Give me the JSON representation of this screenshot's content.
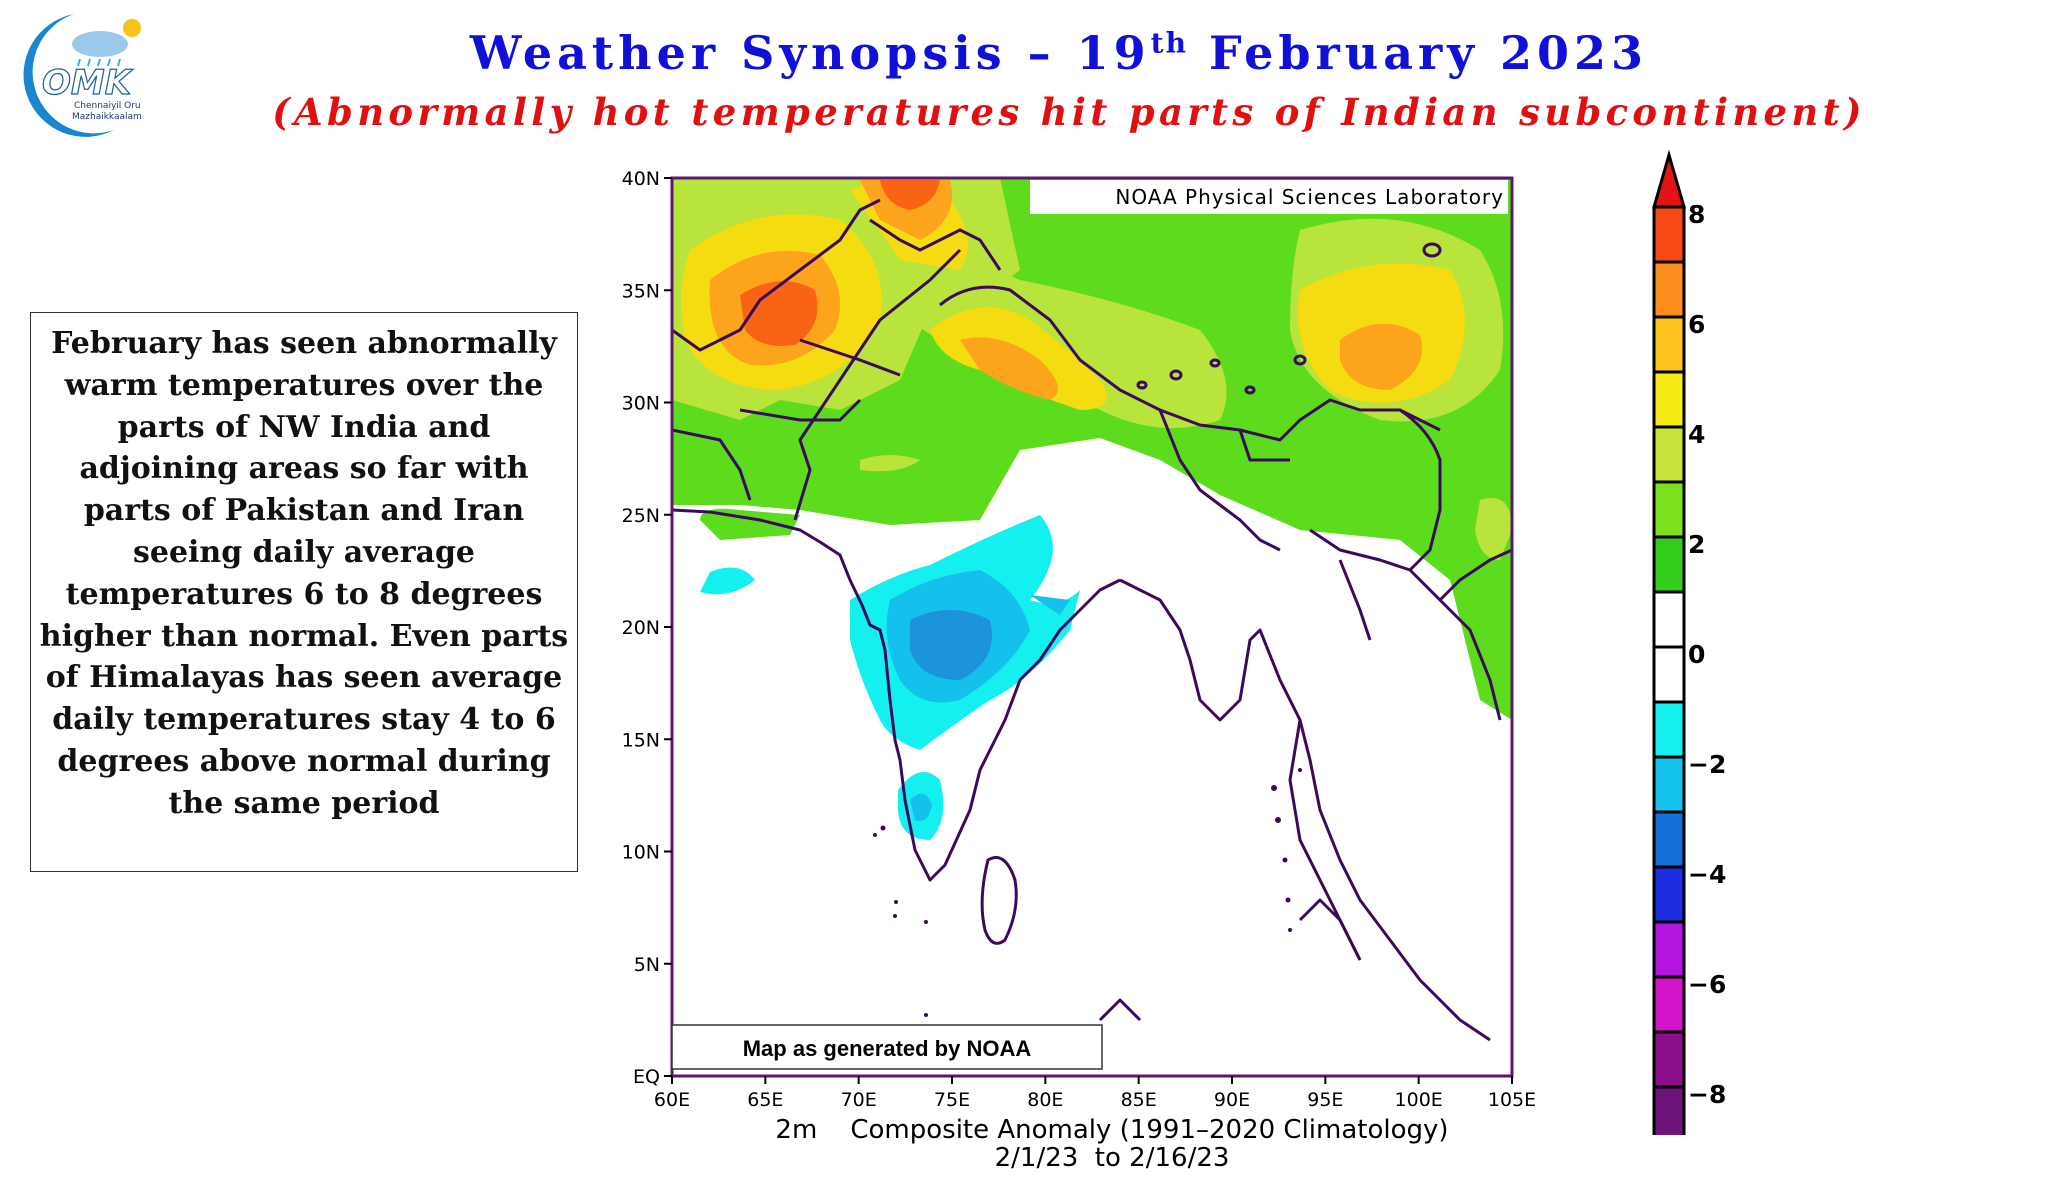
{
  "header": {
    "title_main": "Weather Synopsis – 19",
    "title_sup": "th",
    "title_rest": " February 2023",
    "subtitle": "(Abnormally hot temperatures hit parts of Indian subcontinent)"
  },
  "logo": {
    "text": "OMK",
    "tagline_1": "Chennaiyil Oru",
    "tagline_2": "Mazhaikkaalam",
    "icon": "cloud-sun-rain-icon"
  },
  "note": {
    "text": "February has seen abnormally warm temperatures over the parts of NW India and adjoining areas so far with parts of Pakistan and Iran seeing daily average temperatures 6 to 8 degrees higher than normal. Even parts of Himalayas has seen average daily temperatures stay 4 to 6 degrees above normal during the same period"
  },
  "map": {
    "source_label": "NOAA Physical Sciences Laboratory",
    "caption_box": "Map as generated by NOAA",
    "bottom_line1": "2m    Composite Anomaly (1991–2020 Climatology)",
    "bottom_line2": "2/1/23  to 2/16/23",
    "lat_ticks": [
      "40N",
      "35N",
      "30N",
      "25N",
      "20N",
      "15N",
      "10N",
      "5N",
      "EQ"
    ],
    "lon_ticks": [
      "60E",
      "65E",
      "70E",
      "75E",
      "80E",
      "85E",
      "90E",
      "95E",
      "100E",
      "105E"
    ],
    "extent": {
      "lon": [
        60,
        105
      ],
      "lat": [
        0,
        40
      ]
    },
    "colors": {
      "warm_2_4": "#5cdc1c",
      "warm_3_4": "#b8e43c",
      "warm_4_5": "#f4dc10",
      "warm_5_6": "#fca41c",
      "warm_6_8": "#f86414",
      "warm_8": "#e41414",
      "cool_1_2": "#14f0f0",
      "cool_2_3": "#14c0ec",
      "cool_3_4": "#1c94dc",
      "outline": "#3c0a5c"
    }
  },
  "legend": {
    "labels": [
      "8",
      "6",
      "4",
      "2",
      "0",
      "−2",
      "−4",
      "−6",
      "−8"
    ],
    "colors": [
      "#e41414",
      "#f84814",
      "#fc8c1c",
      "#fcc41c",
      "#f4ec14",
      "#c8e43c",
      "#7ce01c",
      "#34cc1c",
      "#ffffff",
      "#ffffff",
      "#14f0f0",
      "#14c4ec",
      "#1470d8",
      "#1c2ce0",
      "#b414e0",
      "#d414c8",
      "#8c108c",
      "#6c1478",
      "#4c1058"
    ]
  }
}
